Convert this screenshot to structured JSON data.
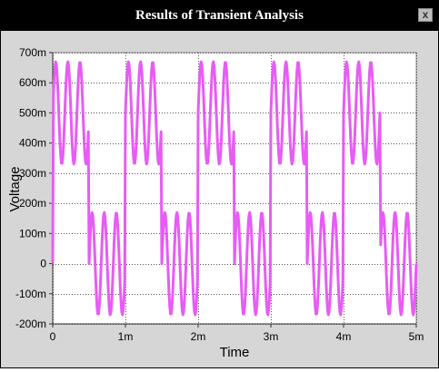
{
  "window": {
    "title": "Results of Transient Analysis",
    "close_label": "x"
  },
  "colors": {
    "trace": "#e75cf5",
    "titlebar": "#000000",
    "background": "#d6d6d6",
    "plot_area": "#ffffff",
    "grid": "#555555"
  },
  "chart_data": {
    "type": "line",
    "title": "",
    "xlabel": "Time",
    "ylabel": "Voltage",
    "xlim": [
      0,
      0.005
    ],
    "ylim": [
      -0.2,
      0.7
    ],
    "x_ticks": [
      0,
      0.001,
      0.002,
      0.003,
      0.004,
      0.005
    ],
    "x_tick_labels": [
      "0",
      "1m",
      "2m",
      "3m",
      "4m",
      "5m"
    ],
    "y_ticks": [
      0.7,
      0.6,
      0.5,
      0.4,
      0.3,
      0.2,
      0.1,
      0,
      -0.1,
      -0.2
    ],
    "y_tick_labels": [
      "700m",
      "600m",
      "500m",
      "400m",
      "300m",
      "200m",
      "100m",
      "0",
      "-100m",
      "-200m"
    ],
    "grid": true,
    "legend": "none",
    "series": [
      {
        "signal": "square wave (0 V / 0.5 V, period 1 ms) plus sine (0.17 V, 6 kHz)",
        "square_period": 0.001,
        "square_low": 0.0,
        "square_high": 0.5,
        "sine_amplitude": 0.17,
        "sine_frequency": 6000,
        "sample_step": 1e-05
      }
    ]
  }
}
